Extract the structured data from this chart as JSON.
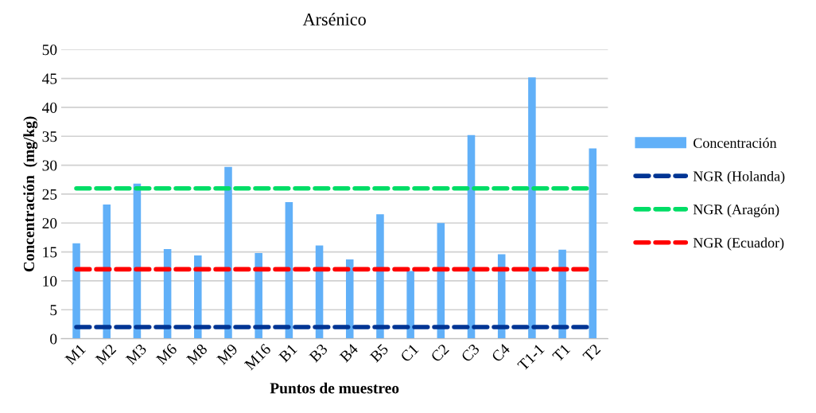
{
  "chart_data": {
    "type": "bar",
    "title": "Arsénico",
    "xlabel": "Puntos de muestreo",
    "ylabel": "Concentración  (mg/kg)",
    "categories": [
      "M1",
      "M2",
      "M3",
      "M6",
      "M8",
      "M9",
      "M16",
      "B1",
      "B3",
      "B4",
      "B5",
      "C1",
      "C2",
      "C3",
      "C4",
      "T1-1",
      "T1",
      "T2"
    ],
    "series": [
      {
        "name": "Concentración",
        "color": "#61b0f8",
        "values": [
          16.5,
          23.2,
          26.8,
          15.5,
          14.4,
          29.7,
          14.8,
          23.6,
          16.1,
          13.7,
          21.5,
          11.7,
          20.0,
          35.2,
          14.6,
          45.2,
          15.4,
          32.9
        ]
      },
      {
        "name": "NGR (Holanda)",
        "type": "line",
        "color": "#003594",
        "line_style": "dashed",
        "values": [
          2,
          2,
          2,
          2,
          2,
          2,
          2,
          2,
          2,
          2,
          2,
          2,
          2,
          2,
          2,
          2,
          2,
          2
        ]
      },
      {
        "name": "NGR (Aragón)",
        "type": "line",
        "color": "#00dd66",
        "line_style": "dashed",
        "values": [
          26,
          26,
          26,
          26,
          26,
          26,
          26,
          26,
          26,
          26,
          26,
          26,
          26,
          26,
          26,
          26,
          26,
          26
        ]
      },
      {
        "name": "NGR (Ecuador)",
        "type": "line",
        "color": "#ff0000",
        "line_style": "dashed",
        "values": [
          12,
          12,
          12,
          12,
          12,
          12,
          12,
          12,
          12,
          12,
          12,
          12,
          12,
          12,
          12,
          12,
          12,
          12
        ]
      }
    ],
    "ylim": [
      0,
      50
    ],
    "yticks": [
      0,
      5,
      10,
      15,
      20,
      25,
      30,
      35,
      40,
      45,
      50
    ],
    "grid": "y",
    "legend": "right",
    "marker": "none"
  }
}
